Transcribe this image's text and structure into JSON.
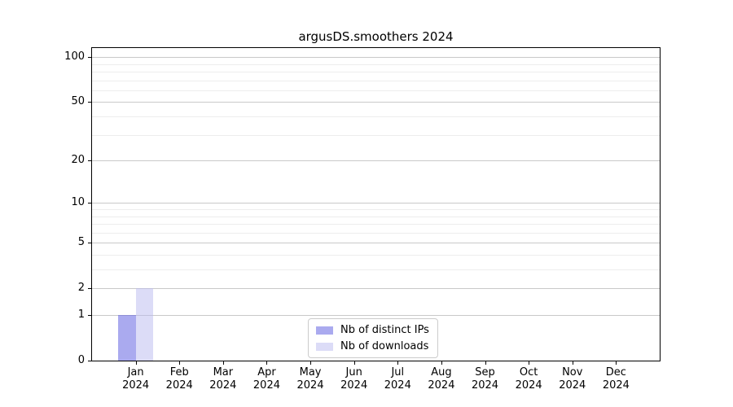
{
  "chart_data": {
    "type": "bar",
    "title": "argusDS.smoothers 2024",
    "year": "2024",
    "categories": [
      "Jan",
      "Feb",
      "Mar",
      "Apr",
      "May",
      "Jun",
      "Jul",
      "Aug",
      "Sep",
      "Oct",
      "Nov",
      "Dec"
    ],
    "series": [
      {
        "name": "Nb of distinct IPs",
        "color": "rgba(85,85,224,0.5)",
        "color_solid": "#aaaaf0",
        "values": [
          1,
          0,
          0,
          0,
          0,
          0,
          0,
          0,
          0,
          0,
          0,
          0
        ]
      },
      {
        "name": "Nb of downloads",
        "color": "rgba(185,185,240,0.5)",
        "color_solid": "#dcdcf7",
        "values": [
          2,
          0,
          0,
          0,
          0,
          0,
          0,
          0,
          0,
          0,
          0,
          0
        ]
      }
    ],
    "y_scale": "log1p",
    "y_ticks": [
      0,
      1,
      2,
      5,
      10,
      20,
      50,
      100
    ],
    "y_minor_gridlines": [
      3,
      4,
      6,
      7,
      8,
      9,
      30,
      40,
      60,
      70,
      80,
      90
    ],
    "ylim": [
      0,
      115
    ],
    "grid": "horizontal",
    "legend_position": "lower-center-inside",
    "colors": {
      "major_grid": "#c9c9c9",
      "minor_grid": "#ededed",
      "frame": "#000000"
    }
  }
}
